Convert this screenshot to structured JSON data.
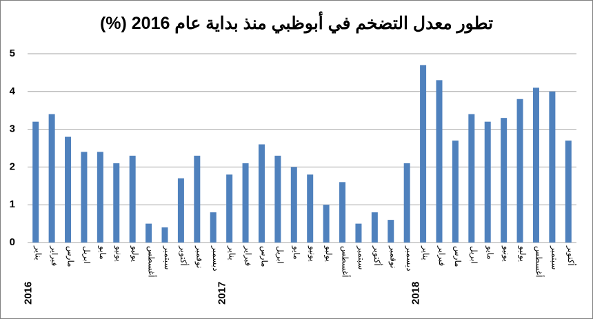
{
  "chart_data": {
    "type": "bar",
    "title": "تطور معدل التضخم في أبوظبي منذ بداية عام 2016 (%)",
    "color": "#4f81bd",
    "grid": true,
    "ylim": [
      0,
      5
    ],
    "yticks": [
      0,
      1,
      2,
      3,
      4,
      5
    ],
    "groups": [
      {
        "name": "2016",
        "categories": [
          "يناير",
          "فبراير",
          "مارس",
          "ابريل",
          "مايو",
          "يونيو",
          "يوليو",
          "أغسطس",
          "سبتمبر",
          "أكتوبر",
          "نوفمبر",
          "ديسمبر"
        ],
        "values": [
          3.2,
          3.4,
          2.8,
          2.4,
          2.4,
          2.1,
          2.3,
          0.5,
          0.4,
          1.7,
          2.3,
          0.8
        ]
      },
      {
        "name": "2017",
        "categories": [
          "يناير",
          "فبراير",
          "مارس",
          "ابريل",
          "مايو",
          "يونيو",
          "يوليو",
          "أغسطس",
          "سبتمبر",
          "أكتوبر",
          "نوفمبر",
          "ديسمبر"
        ],
        "values": [
          1.8,
          2.1,
          2.6,
          2.3,
          2.0,
          1.8,
          1.0,
          1.6,
          0.5,
          0.8,
          0.6,
          2.1
        ]
      },
      {
        "name": "2018",
        "categories": [
          "يناير",
          "فبراير",
          "مارس",
          "ابريل",
          "مايو",
          "يونيو",
          "يوليو",
          "أغسطس",
          "سبتمبر",
          "أكتوبر"
        ],
        "values": [
          4.7,
          4.3,
          2.7,
          3.4,
          3.2,
          3.3,
          3.8,
          4.1,
          4.0,
          2.7
        ]
      }
    ]
  }
}
